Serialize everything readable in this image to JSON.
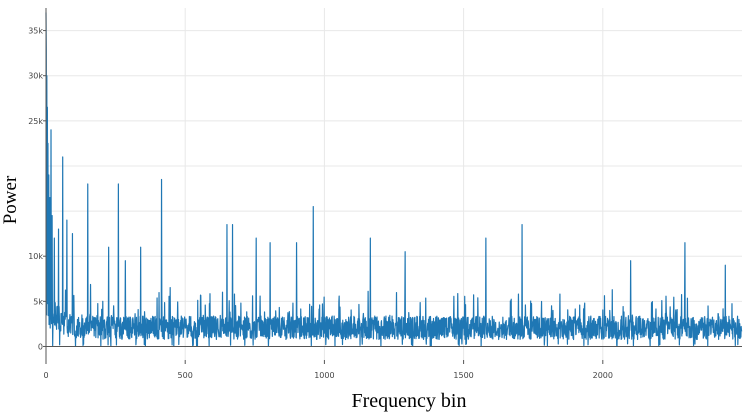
{
  "chart_data": {
    "type": "line",
    "xlabel": "Frequency bin",
    "ylabel": "Power",
    "xlim": [
      0,
      2500
    ],
    "ylim": [
      -1500,
      37500
    ],
    "grid": true,
    "legend": "none",
    "series_color": "#1f77b4",
    "x_ticks": [
      {
        "value": 0,
        "label": "0"
      },
      {
        "value": 500,
        "label": "500"
      },
      {
        "value": 1000,
        "label": "1000"
      },
      {
        "value": 1500,
        "label": "1500"
      },
      {
        "value": 2000,
        "label": "2000"
      }
    ],
    "y_ticks": [
      {
        "value": 0,
        "label": "0"
      },
      {
        "value": 5000,
        "label": "5k"
      },
      {
        "value": 10000,
        "label": "10k"
      },
      {
        "value": 25000,
        "label": "25k"
      },
      {
        "value": 30000,
        "label": "30k"
      },
      {
        "value": 35000,
        "label": "35k"
      }
    ],
    "y_grid_unlabeled": [
      15000,
      20000
    ],
    "series": [
      {
        "n_points": 2500,
        "x_start": 0,
        "x_step": 1,
        "base_level": 2200,
        "noise_amplitude": 2600,
        "spike_probability": 0.08,
        "spike_amplitude": 3500,
        "peaks": [
          {
            "x": 0,
            "y": 37000
          },
          {
            "x": 1,
            "y": 33000
          },
          {
            "x": 3,
            "y": 30000
          },
          {
            "x": 5,
            "y": 26500
          },
          {
            "x": 7,
            "y": 22500
          },
          {
            "x": 10,
            "y": 19000
          },
          {
            "x": 14,
            "y": 16500
          },
          {
            "x": 18,
            "y": 24000
          },
          {
            "x": 22,
            "y": 14500
          },
          {
            "x": 30,
            "y": 12000
          },
          {
            "x": 45,
            "y": 13000
          },
          {
            "x": 60,
            "y": 21000
          },
          {
            "x": 75,
            "y": 14000
          },
          {
            "x": 95,
            "y": 12500
          },
          {
            "x": 150,
            "y": 18000
          },
          {
            "x": 225,
            "y": 11000
          },
          {
            "x": 260,
            "y": 18000
          },
          {
            "x": 285,
            "y": 9500
          },
          {
            "x": 340,
            "y": 11000
          },
          {
            "x": 415,
            "y": 18500
          },
          {
            "x": 650,
            "y": 13500
          },
          {
            "x": 670,
            "y": 13500
          },
          {
            "x": 755,
            "y": 12000
          },
          {
            "x": 805,
            "y": 11500
          },
          {
            "x": 900,
            "y": 11500
          },
          {
            "x": 960,
            "y": 15500
          },
          {
            "x": 1165,
            "y": 12000
          },
          {
            "x": 1290,
            "y": 10500
          },
          {
            "x": 1580,
            "y": 12000
          },
          {
            "x": 1710,
            "y": 13500
          },
          {
            "x": 2100,
            "y": 9500
          },
          {
            "x": 2295,
            "y": 11500
          },
          {
            "x": 2440,
            "y": 9000
          }
        ]
      }
    ]
  }
}
